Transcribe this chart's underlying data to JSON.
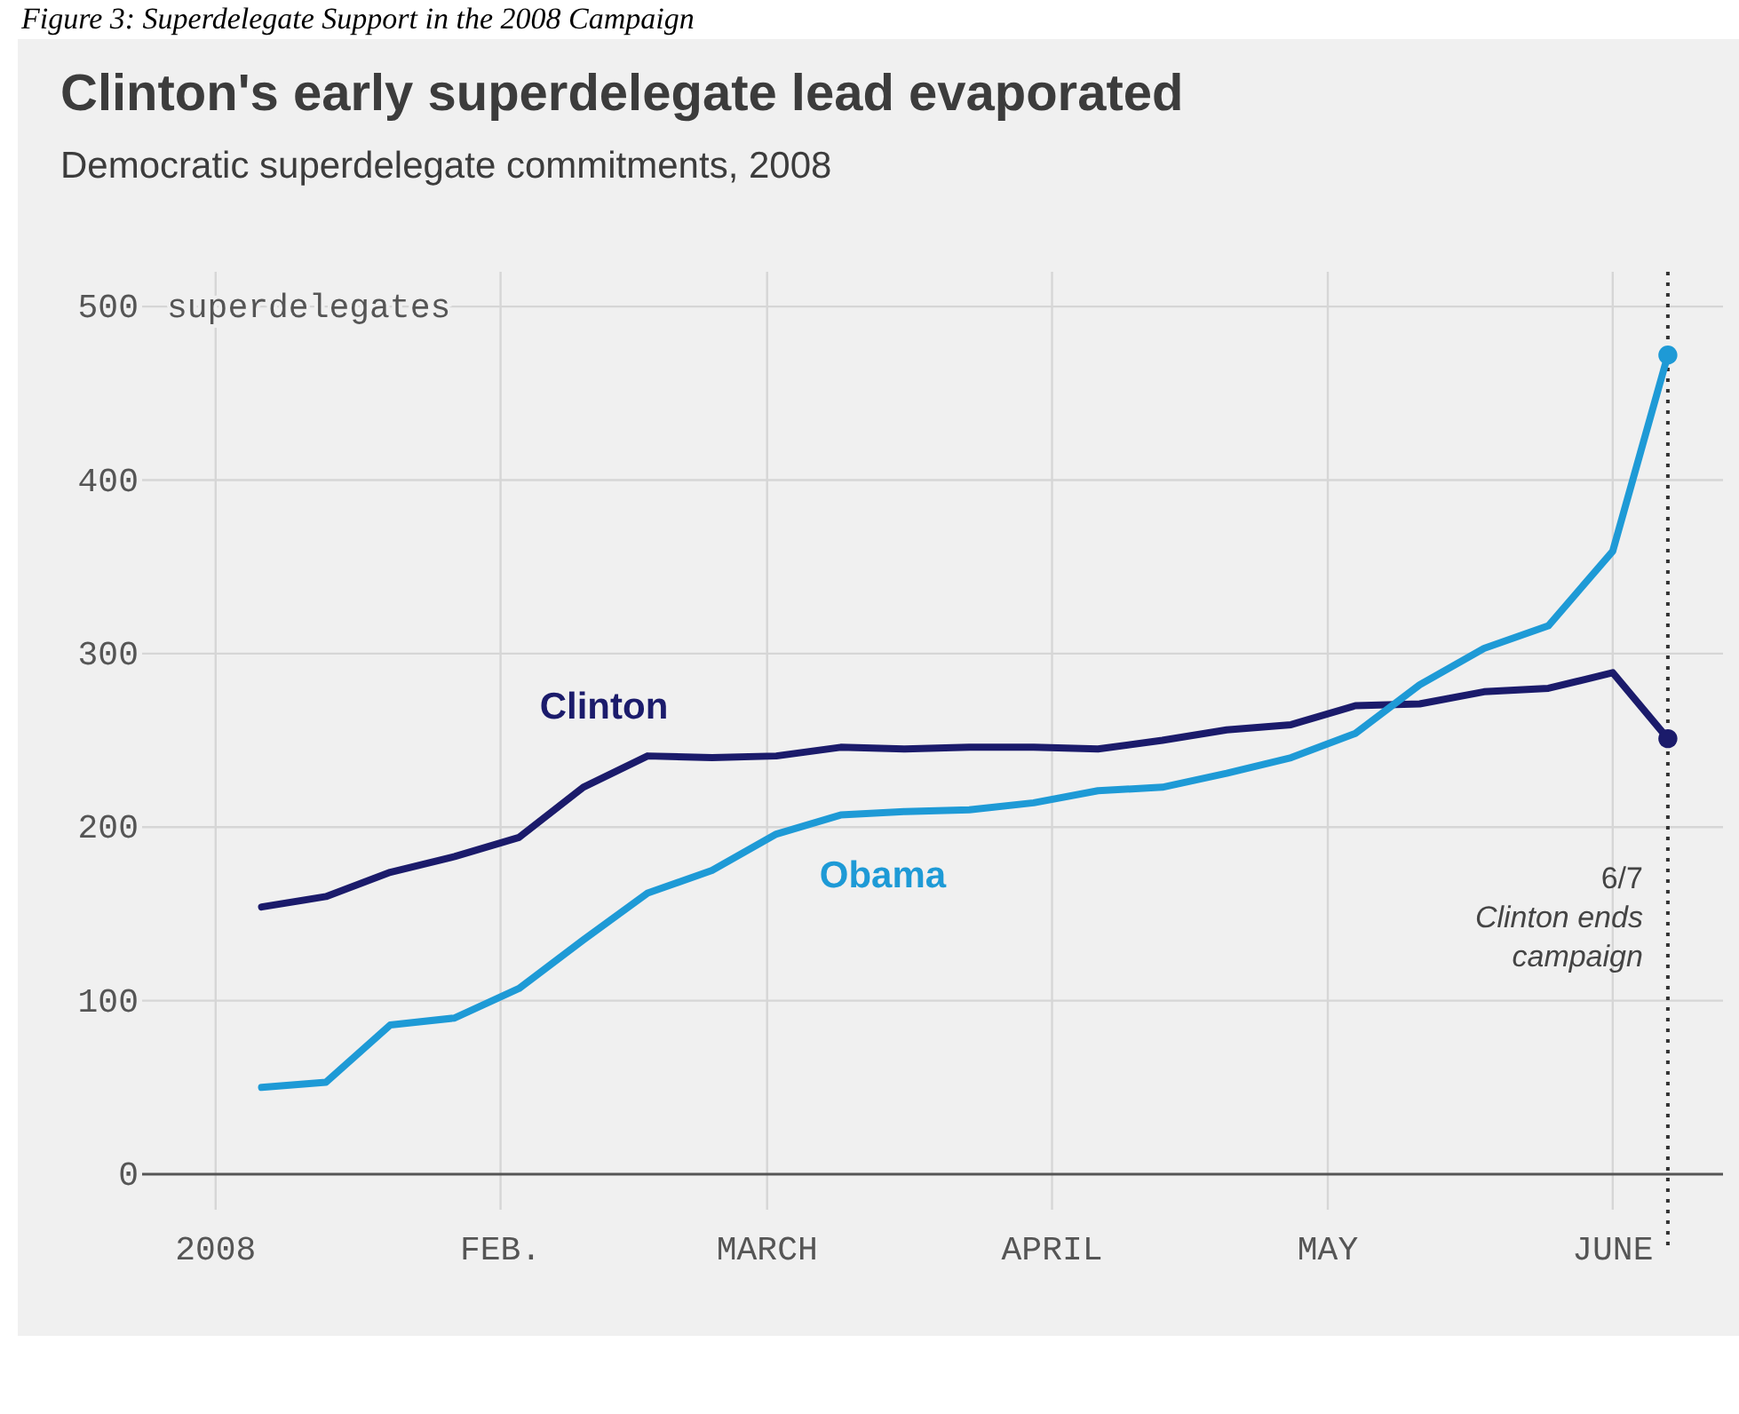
{
  "chart_data": {
    "type": "line",
    "title": "Clinton's early superdelegate lead evaporated",
    "subtitle": "Democratic superdelegate commitments, 2008",
    "ylabel": "superdelegates",
    "annotations": [
      "Figure 3: Superdelegate Support in the 2008 Campaign"
    ],
    "x": [
      "2008-01-06",
      "2008-01-13",
      "2008-01-20",
      "2008-01-27",
      "2008-02-03",
      "2008-02-10",
      "2008-02-17",
      "2008-02-24",
      "2008-03-02",
      "2008-03-09",
      "2008-03-16",
      "2008-03-23",
      "2008-03-30",
      "2008-04-06",
      "2008-04-13",
      "2008-04-20",
      "2008-04-27",
      "2008-05-04",
      "2008-05-11",
      "2008-05-18",
      "2008-05-25",
      "2008-06-01",
      "2008-06-07"
    ],
    "series": [
      {
        "name": "Clinton",
        "color": "#1b1b6b",
        "values": [
          154,
          160,
          174,
          183,
          194,
          223,
          241,
          240,
          241,
          246,
          245,
          246,
          246,
          245,
          250,
          256,
          259,
          270,
          271,
          278,
          280,
          289,
          251
        ]
      },
      {
        "name": "Obama",
        "color": "#1e9ad6",
        "values": [
          50,
          53,
          86,
          90,
          107,
          135,
          162,
          175,
          196,
          207,
          209,
          210,
          214,
          221,
          223,
          231,
          240,
          254,
          282,
          303,
          316,
          359,
          472
        ]
      },
      {
        "type": "scatter",
        "marker": "circle",
        "color": "#1b1b6b",
        "x": [
          "2008-06-07"
        ],
        "values": [
          251
        ]
      },
      {
        "type": "scatter",
        "marker": "circle",
        "color": "#1e9ad6",
        "x": [
          "2008-06-07"
        ],
        "values": [
          472
        ]
      }
    ],
    "marker": "none",
    "line_style": "solid",
    "grid": true,
    "xlim": [
      "2007-12-24",
      "2008-06-13"
    ],
    "xticks": [
      {
        "value": "2008-01-01",
        "label": "2008"
      },
      {
        "value": "2008-02-01",
        "label": "FEB."
      },
      {
        "value": "2008-03-01",
        "label": "MARCH"
      },
      {
        "value": "2008-04-01",
        "label": "APRIL"
      },
      {
        "value": "2008-05-01",
        "label": "MAY"
      },
      {
        "value": "2008-06-01",
        "label": "JUNE"
      }
    ],
    "ylim": [
      0,
      520
    ],
    "yticks": [
      0,
      100,
      200,
      300,
      400,
      500
    ],
    "ref_lines": [
      {
        "axis": "x",
        "value": "2008-06-07",
        "label": "6/7\nClinton ends\ncampaign",
        "line_style": "dotted",
        "color": "#333333"
      }
    ]
  }
}
